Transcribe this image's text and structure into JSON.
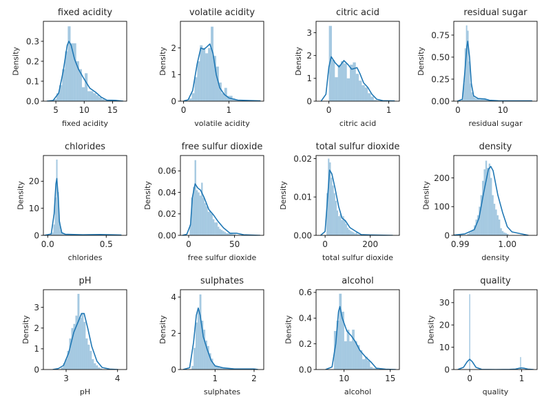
{
  "chart_data": [
    {
      "type": "histogram+kde",
      "title": "fixed acidity",
      "xlabel": "fixed acidity",
      "ylabel": "Density",
      "xlim": [
        2.8,
        17.5
      ],
      "ylim": [
        0,
        0.4
      ],
      "xticks": [
        5,
        10,
        15
      ],
      "xtick_labels": [
        "5",
        "10",
        "15"
      ],
      "yticks": [
        0,
        0.1,
        0.2,
        0.3
      ],
      "ytick_labels": [
        "0.0",
        "0.1",
        "0.2",
        "0.3"
      ],
      "hist": {
        "start": 4.6,
        "width": 0.5,
        "values": [
          0.01,
          0.04,
          0.08,
          0.16,
          0.25,
          0.375,
          0.29,
          0.29,
          0.2,
          0.16,
          0.07,
          0.14,
          0.05,
          0.05,
          0.04,
          0.03,
          0.02,
          0.01,
          0.005,
          0.005,
          0.003,
          0.003,
          0.005
        ]
      },
      "kde": {
        "x": [
          3.4,
          4.5,
          5.5,
          6.3,
          7,
          7.3,
          7.7,
          8.3,
          9,
          10,
          11,
          12,
          13,
          14,
          15.5,
          16.9
        ],
        "y": [
          0,
          0.003,
          0.04,
          0.15,
          0.28,
          0.3,
          0.28,
          0.21,
          0.16,
          0.11,
          0.065,
          0.045,
          0.02,
          0.005,
          0.004,
          0
        ]
      }
    },
    {
      "type": "histogram+kde",
      "title": "volatile acidity",
      "xlabel": "volatile acidity",
      "ylabel": "Density",
      "xlim": [
        -0.07,
        1.77
      ],
      "ylim": [
        0,
        3.0
      ],
      "xticks": [
        0,
        1
      ],
      "xtick_labels": [
        "0",
        "1"
      ],
      "yticks": [
        0,
        1,
        2
      ],
      "ytick_labels": [
        "0",
        "1",
        "2"
      ],
      "hist": {
        "start": 0.12,
        "width": 0.06,
        "values": [
          0.1,
          0.3,
          0.9,
          1.5,
          2.1,
          2.0,
          1.8,
          2.0,
          2.8,
          1.7,
          1.3,
          0.7,
          0.3,
          0.5,
          0.2,
          0.2,
          0.1,
          0.05,
          0.03,
          0.02,
          0.02,
          0.01,
          0.01,
          0.01
        ]
      },
      "kde": {
        "x": [
          0,
          0.1,
          0.2,
          0.3,
          0.38,
          0.45,
          0.52,
          0.58,
          0.65,
          0.72,
          0.8,
          0.9,
          1.0,
          1.2,
          1.5,
          1.7
        ],
        "y": [
          0.01,
          0.05,
          0.4,
          1.4,
          2.0,
          1.95,
          2.05,
          2.15,
          1.8,
          1.0,
          0.5,
          0.25,
          0.12,
          0.04,
          0.02,
          0.01
        ]
      }
    },
    {
      "type": "histogram+kde",
      "title": "citric acid",
      "xlabel": "citric acid",
      "ylabel": "Density",
      "xlim": [
        -0.214,
        1.177
      ],
      "ylim": [
        0,
        3.5
      ],
      "xticks": [
        0,
        1
      ],
      "xtick_labels": [
        "0",
        "1"
      ],
      "yticks": [
        0,
        1,
        2,
        3
      ],
      "ytick_labels": [
        "0",
        "1",
        "2",
        "3"
      ],
      "hist": {
        "start": 0,
        "width": 0.05,
        "values": [
          3.3,
          1.8,
          1.05,
          1.6,
          1.75,
          1.65,
          1.0,
          1.6,
          1.7,
          1.2,
          0.9,
          0.7,
          0.6,
          0.35,
          0.2,
          0.05,
          0.02,
          0,
          0,
          0.02
        ]
      },
      "kde": {
        "x": [
          -0.13,
          -0.05,
          0,
          0.04,
          0.1,
          0.17,
          0.25,
          0.32,
          0.38,
          0.47,
          0.52,
          0.58,
          0.65,
          0.72,
          0.8,
          0.9,
          1.1
        ],
        "y": [
          0,
          0.3,
          1.5,
          1.95,
          1.7,
          1.5,
          1.78,
          1.6,
          1.4,
          1.47,
          1.2,
          0.8,
          0.6,
          0.3,
          0.08,
          0.02,
          0.01
        ]
      }
    },
    {
      "type": "histogram+kde",
      "title": "residual sugar",
      "xlabel": "residual sugar",
      "ylabel": "Density",
      "xlim": [
        -0.9,
        17.6
      ],
      "ylim": [
        0,
        0.906
      ],
      "xticks": [
        0,
        10
      ],
      "xtick_labels": [
        "0",
        "10"
      ],
      "yticks": [
        0,
        0.25,
        0.5,
        0.75
      ],
      "ytick_labels": [
        "0.00",
        "0.25",
        "0.50",
        "0.75"
      ],
      "hist": {
        "start": 0.9,
        "width": 0.3,
        "values": [
          0.02,
          0.2,
          0.6,
          0.86,
          0.8,
          0.45,
          0.2,
          0.1,
          0.06,
          0.04,
          0.03,
          0.03,
          0.03,
          0.02,
          0.03,
          0.03,
          0.02,
          0.02,
          0.02,
          0.02
        ]
      },
      "kde": {
        "x": [
          -0.1,
          1,
          1.5,
          2,
          2.2,
          2.6,
          3,
          3.5,
          4.5,
          6,
          7,
          9,
          16.5
        ],
        "y": [
          0,
          0.02,
          0.3,
          0.62,
          0.68,
          0.5,
          0.2,
          0.06,
          0.03,
          0.025,
          0.01,
          0.005,
          0.003
        ]
      }
    },
    {
      "type": "histogram+kde",
      "title": "chlorides",
      "xlabel": "chlorides",
      "ylabel": "Density",
      "xlim": [
        -0.037,
        0.675
      ],
      "ylim": [
        0,
        29.5
      ],
      "xticks": [
        0,
        0.5
      ],
      "xtick_labels": [
        "0.0",
        "0.5"
      ],
      "yticks": [
        0,
        10,
        20
      ],
      "ytick_labels": [
        "0",
        "10",
        "20"
      ],
      "hist": {
        "start": 0.012,
        "width": 0.012,
        "values": [
          0.1,
          0.3,
          1,
          4,
          14,
          28,
          16,
          5,
          2,
          1,
          0.5,
          0.4,
          0.3,
          0.2
        ]
      },
      "kde": {
        "x": [
          -0.03,
          0.03,
          0.055,
          0.07,
          0.078,
          0.09,
          0.1,
          0.12,
          0.15,
          0.3,
          0.45,
          0.55,
          0.63
        ],
        "y": [
          0,
          0.5,
          8,
          19,
          21,
          14,
          5,
          1,
          0.4,
          0.2,
          0.3,
          0.2,
          0.1
        ]
      }
    },
    {
      "type": "histogram+kde",
      "title": "free sulfur dioxide",
      "xlabel": "free sulfur dioxide",
      "ylabel": "Density",
      "xlim": [
        -9,
        81.8
      ],
      "ylim": [
        0,
        0.0743
      ],
      "xticks": [
        0,
        50
      ],
      "xtick_labels": [
        "0",
        "50"
      ],
      "yticks": [
        0,
        0.02,
        0.04,
        0.06
      ],
      "ytick_labels": [
        "0.00",
        "0.02",
        "0.04",
        "0.06"
      ],
      "hist": {
        "start": 1,
        "width": 1.8,
        "values": [
          0.01,
          0.035,
          0.045,
          0.07,
          0.042,
          0.04,
          0.037,
          0.049,
          0.035,
          0.03,
          0.027,
          0.022,
          0.023,
          0.02,
          0.015,
          0.012,
          0.012,
          0.008,
          0.006,
          0.005,
          0.004,
          0.003,
          0.002,
          0.002,
          0.002,
          0.002,
          0.001,
          0.001
        ]
      },
      "kde": {
        "x": [
          -7,
          -2,
          2,
          4,
          7,
          10,
          13,
          17,
          22,
          27,
          32,
          38,
          45,
          52,
          60,
          70,
          78
        ],
        "y": [
          0,
          0.001,
          0.01,
          0.035,
          0.048,
          0.044,
          0.042,
          0.035,
          0.024,
          0.019,
          0.013,
          0.007,
          0.002,
          0.002,
          0.0005,
          0.0002,
          0
        ]
      }
    },
    {
      "type": "histogram+kde",
      "title": "total sulfur dioxide",
      "xlabel": "total sulfur dioxide",
      "ylabel": "Density",
      "xlim": [
        -40,
        329
      ],
      "ylim": [
        0,
        0.0208
      ],
      "xticks": [
        0,
        200
      ],
      "xtick_labels": [
        "0",
        "200"
      ],
      "yticks": [
        0,
        0.01,
        0.02
      ],
      "ytick_labels": [
        "0.00",
        "0.01",
        "0.02"
      ],
      "hist": {
        "start": 6,
        "width": 6.5,
        "values": [
          0.011,
          0.02,
          0.019,
          0.015,
          0.013,
          0.011,
          0.009,
          0.0065,
          0.005,
          0.0055,
          0.004,
          0.005,
          0.004,
          0.003,
          0.002,
          0.0015,
          0.0012,
          0.001,
          0.0008,
          0.0005,
          0.0008,
          0.0003,
          0.0002
        ]
      },
      "kde": {
        "x": [
          -20,
          0,
          10,
          20,
          30,
          45,
          60,
          75,
          90,
          110,
          140,
          160,
          200,
          300
        ],
        "y": [
          0,
          0.001,
          0.009,
          0.017,
          0.016,
          0.012,
          0.0075,
          0.0045,
          0.0038,
          0.002,
          0.0009,
          0.0002,
          0.0001,
          0
        ]
      }
    },
    {
      "type": "histogram+kde",
      "title": "density",
      "xlabel": "density",
      "ylabel": "Density",
      "xlim": [
        0.98865,
        1.00633
      ],
      "ylim": [
        0,
        278
      ],
      "xticks": [
        0.99,
        1.0
      ],
      "xtick_labels": [
        "0.99",
        "1.00"
      ],
      "yticks": [
        0,
        100,
        200
      ],
      "ytick_labels": [
        "0",
        "100",
        "200"
      ],
      "hist": {
        "start": 0.9915,
        "width": 0.00035,
        "values": [
          5,
          10,
          15,
          20,
          35,
          55,
          70,
          100,
          140,
          190,
          230,
          260,
          235,
          250,
          200,
          140,
          110,
          90,
          70,
          55,
          25,
          15,
          10,
          8,
          5
        ]
      },
      "kde": {
        "x": [
          0.9885,
          0.991,
          0.993,
          0.994,
          0.995,
          0.996,
          0.9965,
          0.997,
          0.998,
          0.999,
          1.0,
          1.001,
          1.003,
          1.0045
        ],
        "y": [
          0.5,
          5,
          20,
          60,
          150,
          230,
          240,
          225,
          140,
          80,
          30,
          12,
          5,
          0
        ]
      }
    },
    {
      "type": "histogram+kde",
      "title": "pH",
      "xlabel": "pH",
      "ylabel": "Density",
      "xlim": [
        2.558,
        4.178
      ],
      "ylim": [
        0,
        3.85
      ],
      "xticks": [
        3,
        4
      ],
      "xtick_labels": [
        "3",
        "4"
      ],
      "yticks": [
        0,
        1,
        2,
        3
      ],
      "ytick_labels": [
        "0",
        "1",
        "2",
        "3"
      ],
      "hist": {
        "start": 2.9,
        "width": 0.04,
        "values": [
          0.1,
          0.3,
          0.5,
          0.9,
          1.5,
          2.0,
          2.2,
          2.6,
          3.65,
          2.5,
          2.7,
          2.3,
          1.5,
          1.2,
          0.9,
          0.5,
          0.3,
          0.2,
          0.1,
          0.05
        ]
      },
      "kde": {
        "x": [
          2.74,
          2.85,
          2.95,
          3.05,
          3.15,
          3.25,
          3.3,
          3.35,
          3.42,
          3.5,
          3.6,
          3.7,
          3.85,
          4.01
        ],
        "y": [
          0,
          0.05,
          0.2,
          0.8,
          1.8,
          2.4,
          2.7,
          2.7,
          2.0,
          1.1,
          0.4,
          0.1,
          0.02,
          0
        ]
      }
    },
    {
      "type": "histogram+kde",
      "title": "sulphates",
      "xlabel": "sulphates",
      "ylabel": "Density",
      "xlim": [
        0.113,
        2.247
      ],
      "ylim": [
        0,
        4.41
      ],
      "xticks": [
        1,
        2
      ],
      "xtick_labels": [
        "1",
        "2"
      ],
      "yticks": [
        0,
        2,
        4
      ],
      "ytick_labels": [
        "0",
        "2",
        "4"
      ],
      "hist": {
        "start": 0.4,
        "width": 0.05,
        "values": [
          0.2,
          1.2,
          2.6,
          3.3,
          4.15,
          2.7,
          2.2,
          1.6,
          1.3,
          0.9,
          0.6,
          0.3,
          0.2,
          0.15,
          0.1,
          0.1,
          0.08,
          0.05,
          0.05,
          0.04
        ]
      },
      "kde": {
        "x": [
          0.18,
          0.35,
          0.45,
          0.52,
          0.57,
          0.62,
          0.7,
          0.8,
          0.9,
          1.0,
          1.2,
          1.5,
          2.0,
          2.1
        ],
        "y": [
          0,
          0.1,
          1.5,
          3.0,
          3.4,
          3.0,
          1.8,
          1.1,
          0.5,
          0.2,
          0.1,
          0.03,
          0.03,
          0
        ]
      }
    },
    {
      "type": "histogram+kde",
      "title": "alcohol",
      "xlabel": "alcohol",
      "ylabel": "Density",
      "xlim": [
        6.97,
        15.99
      ],
      "ylim": [
        0,
        0.621
      ],
      "xticks": [
        10,
        15
      ],
      "xtick_labels": [
        "10",
        "15"
      ],
      "yticks": [
        0,
        0.2,
        0.4,
        0.6
      ],
      "ytick_labels": [
        "0.0",
        "0.2",
        "0.4",
        "0.6"
      ],
      "hist": {
        "start": 8.9,
        "width": 0.28,
        "values": [
          0.3,
          0.38,
          0.59,
          0.45,
          0.22,
          0.31,
          0.22,
          0.31,
          0.22,
          0.19,
          0.15,
          0.08,
          0.1,
          0.07,
          0.02,
          0.01,
          0.01
        ]
      },
      "kde": {
        "x": [
          8.0,
          8.7,
          9.1,
          9.4,
          9.55,
          9.8,
          10.3,
          10.8,
          11.2,
          11.7,
          12.3,
          12.9,
          13.5,
          14.5,
          15.6
        ],
        "y": [
          0,
          0.02,
          0.2,
          0.45,
          0.49,
          0.4,
          0.3,
          0.26,
          0.22,
          0.15,
          0.1,
          0.06,
          0.01,
          0.002,
          0
        ]
      }
    },
    {
      "type": "histogram+kde",
      "title": "quality",
      "xlabel": "quality",
      "ylabel": "Density",
      "xlim": [
        -0.307,
        1.298
      ],
      "ylim": [
        0,
        35.8
      ],
      "xticks": [
        0,
        1
      ],
      "xtick_labels": [
        "0",
        "1"
      ],
      "yticks": [
        0,
        10,
        20,
        30
      ],
      "ytick_labels": [
        "0",
        "10",
        "20",
        "30"
      ],
      "hist": {
        "start": -0.01,
        "width": 0.02,
        "values": [
          33.8,
          0,
          0,
          0,
          0,
          0,
          0,
          0,
          0,
          0,
          0,
          0,
          0,
          0,
          0,
          0,
          0,
          0,
          0,
          0,
          0,
          0,
          0,
          0,
          0,
          0,
          0,
          0,
          0,
          0,
          0,
          0,
          0,
          0,
          0,
          0,
          0,
          0,
          0,
          0,
          0,
          0,
          0,
          0,
          0,
          0,
          0,
          0,
          0,
          5.6
        ]
      },
      "kde": {
        "x": [
          -0.23,
          -0.12,
          -0.05,
          0,
          0.05,
          0.12,
          0.23,
          0.5,
          0.77,
          0.88,
          0.95,
          1,
          1.05,
          1.12,
          1.23
        ],
        "y": [
          0,
          1,
          3.5,
          4.6,
          3.5,
          1,
          0.05,
          0,
          0.05,
          0.2,
          0.6,
          0.7,
          0.6,
          0.2,
          0
        ]
      }
    }
  ],
  "colors": {
    "hist": "#1f77b4",
    "kde": "#1f77b4",
    "axes": "#000000"
  }
}
